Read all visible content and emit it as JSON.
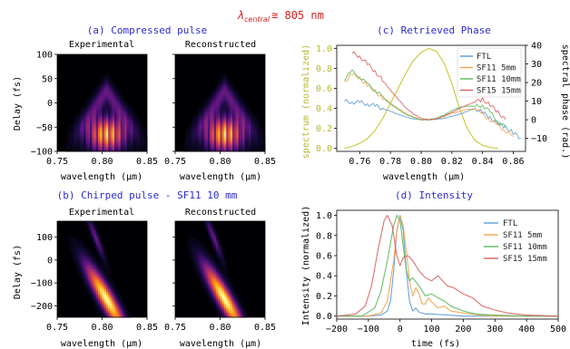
{
  "header": {
    "lambda_symbol": "λ",
    "lambda_sub": "central",
    "lambda_value": "≅ 805 nm"
  },
  "colors": {
    "title": "#2b2bd0",
    "header": "#d11f1f",
    "ftl": "#5b9bd5",
    "sf11_5": "#f5a24b",
    "sf11_10": "#5cb85c",
    "sf15_15": "#d96060",
    "spectrum": "#c8c83a"
  },
  "chart_data": [
    {
      "type": "heatmap",
      "id": "a",
      "title": "(a) Compressed pulse",
      "panels": [
        {
          "subtitle": "Experimental",
          "center_um": 0.805,
          "width_um": 0.016,
          "delay_center_fs": -65,
          "delay_spread_fs": 40,
          "tilt": 0
        },
        {
          "subtitle": "Reconstructed",
          "center_um": 0.805,
          "width_um": 0.016,
          "delay_center_fs": -65,
          "delay_spread_fs": 40,
          "tilt": 0
        }
      ],
      "xlabel": "wavelength (μm)",
      "ylabel": "Delay (fs)",
      "xlim": [
        0.75,
        0.85
      ],
      "ylim": [
        -100,
        100
      ],
      "xticks": [
        "0.75",
        "0.80",
        "0.85"
      ],
      "yticks": [
        "100",
        "50",
        "0",
        "−50",
        "−100"
      ]
    },
    {
      "type": "heatmap",
      "id": "b",
      "title": "(b) Chirped pulse - SF11 10 mm",
      "panels": [
        {
          "subtitle": "Experimental",
          "center_um": 0.805,
          "width_um": 0.018,
          "delay_center_fs": -170,
          "delay_spread_fs": 60,
          "tilt": 1
        },
        {
          "subtitle": "Reconstructed",
          "center_um": 0.805,
          "width_um": 0.018,
          "delay_center_fs": -170,
          "delay_spread_fs": 60,
          "tilt": 1
        }
      ],
      "xlabel": "wavelength (μm)",
      "ylabel": "Delay (fs)",
      "xlim": [
        0.75,
        0.85
      ],
      "ylim": [
        -250,
        170
      ],
      "xticks": [
        "0.75",
        "0.80",
        "0.85"
      ],
      "yticks": [
        "100",
        "0",
        "−100",
        "−200"
      ]
    },
    {
      "type": "line",
      "id": "c",
      "title": "(c) Retrieved Phase",
      "xlabel": "wavelength (μm)",
      "ylabel_left": "spectrum (normalized)",
      "ylabel_right": "spectral phase (rad.)",
      "xlim": [
        0.745,
        0.868
      ],
      "ylim_left": [
        -0.03,
        1.03
      ],
      "ylim_right": [
        -17,
        40
      ],
      "xticks": [
        "0.76",
        "0.78",
        "0.80",
        "0.82",
        "0.84",
        "0.86"
      ],
      "yticks_left": [
        "0.0",
        "0.2",
        "0.4",
        "0.6",
        "0.8",
        "1.0"
      ],
      "yticks_right": [
        "40",
        "30",
        "20",
        "10",
        "0",
        "−10"
      ],
      "spectrum": {
        "x": [
          0.75,
          0.755,
          0.76,
          0.765,
          0.77,
          0.775,
          0.78,
          0.785,
          0.79,
          0.795,
          0.8,
          0.805,
          0.81,
          0.815,
          0.82,
          0.825,
          0.83,
          0.835,
          0.84,
          0.845,
          0.85
        ],
        "y": [
          0.0,
          0.02,
          0.05,
          0.1,
          0.18,
          0.3,
          0.45,
          0.6,
          0.75,
          0.88,
          0.96,
          1.0,
          0.97,
          0.85,
          0.65,
          0.4,
          0.2,
          0.08,
          0.03,
          0.01,
          0.0
        ]
      },
      "series": [
        {
          "name": "FTL",
          "color": "#5b9bd5",
          "x": [
            0.75,
            0.755,
            0.76,
            0.765,
            0.77,
            0.775,
            0.78,
            0.785,
            0.79,
            0.795,
            0.8,
            0.805,
            0.81,
            0.815,
            0.82,
            0.825,
            0.83,
            0.835,
            0.84,
            0.845,
            0.85,
            0.855,
            0.86,
            0.865
          ],
          "y": [
            10,
            9.5,
            9.3,
            8.5,
            7.5,
            6,
            4.5,
            3,
            1.5,
            0.5,
            0,
            0,
            0.2,
            0.8,
            1.8,
            3,
            4.5,
            6,
            4,
            1,
            -2,
            -4,
            -7,
            -10
          ]
        },
        {
          "name": "SF11 5mm",
          "color": "#f5a24b",
          "x": [
            0.75,
            0.755,
            0.76,
            0.765,
            0.77,
            0.775,
            0.78,
            0.785,
            0.79,
            0.795,
            0.8,
            0.805,
            0.81,
            0.815,
            0.82,
            0.825,
            0.83,
            0.835,
            0.84,
            0.845,
            0.85,
            0.855,
            0.86
          ],
          "y": [
            20,
            25,
            22,
            19,
            15,
            12,
            9,
            6,
            3.5,
            1.5,
            0,
            0,
            0.6,
            1.8,
            3.5,
            4.5,
            5.5,
            6,
            3,
            0,
            -3,
            -6,
            -9
          ]
        },
        {
          "name": "SF11 10mm",
          "color": "#5cb85c",
          "x": [
            0.75,
            0.755,
            0.76,
            0.765,
            0.77,
            0.775,
            0.78,
            0.785,
            0.79,
            0.795,
            0.8,
            0.805,
            0.81,
            0.815,
            0.82,
            0.825,
            0.83,
            0.835,
            0.84,
            0.845,
            0.85,
            0.855
          ],
          "y": [
            22,
            26,
            23,
            19,
            16,
            12,
            8.5,
            5.5,
            3,
            1.2,
            0,
            0,
            1,
            2.5,
            5,
            6.5,
            7.5,
            7,
            8,
            4,
            -1,
            -4
          ]
        },
        {
          "name": "SF15 15mm",
          "color": "#d96060",
          "x": [
            0.755,
            0.76,
            0.765,
            0.77,
            0.775,
            0.78,
            0.785,
            0.79,
            0.795,
            0.8,
            0.805,
            0.81,
            0.815,
            0.82,
            0.825,
            0.83,
            0.835,
            0.84,
            0.845,
            0.85,
            0.855
          ],
          "y": [
            36,
            34,
            30,
            26,
            21,
            16,
            11,
            6.5,
            3,
            0.8,
            0,
            0.5,
            2,
            4,
            6,
            8,
            9.5,
            11,
            8,
            4,
            0
          ]
        }
      ],
      "legend": "top-right"
    },
    {
      "type": "line",
      "id": "d",
      "title": "(d) Intensity",
      "xlabel": "time (fs)",
      "ylabel": "Intensity (normalized)",
      "xlim": [
        -200,
        500
      ],
      "ylim": [
        -0.03,
        1.05
      ],
      "xticks": [
        "−200",
        "−100",
        "0",
        "100",
        "200",
        "300",
        "400",
        "500"
      ],
      "yticks": [
        "0.0",
        "0.2",
        "0.4",
        "0.6",
        "0.8",
        "1.0"
      ],
      "series": [
        {
          "name": "FTL",
          "color": "#5b9bd5",
          "x": [
            -200,
            -100,
            -60,
            -40,
            -30,
            -20,
            -10,
            0,
            10,
            20,
            30,
            40,
            50,
            60,
            80,
            100,
            150,
            200,
            300,
            400,
            500
          ],
          "y": [
            0,
            0,
            0.01,
            0.05,
            0.15,
            0.45,
            0.85,
            1.0,
            0.85,
            0.45,
            0.15,
            0.05,
            0.08,
            0.04,
            0.02,
            0.02,
            0.01,
            0,
            0,
            0,
            0
          ]
        },
        {
          "name": "SF11 5mm",
          "color": "#f5a24b",
          "x": [
            -200,
            -100,
            -60,
            -40,
            -20,
            -10,
            0,
            10,
            20,
            30,
            40,
            50,
            60,
            70,
            80,
            90,
            100,
            120,
            140,
            160,
            180,
            200,
            250,
            300,
            400,
            500
          ],
          "y": [
            0,
            0,
            0.03,
            0.15,
            0.55,
            0.85,
            1.0,
            0.9,
            0.65,
            0.35,
            0.2,
            0.28,
            0.22,
            0.12,
            0.12,
            0.18,
            0.14,
            0.08,
            0.1,
            0.05,
            0.04,
            0.03,
            0.01,
            0,
            0,
            0
          ]
        },
        {
          "name": "SF11 10mm",
          "color": "#5cb85c",
          "x": [
            -200,
            -120,
            -80,
            -60,
            -40,
            -20,
            -10,
            0,
            10,
            20,
            30,
            40,
            60,
            80,
            100,
            120,
            140,
            160,
            200,
            240,
            300,
            400,
            500
          ],
          "y": [
            0,
            0,
            0.08,
            0.25,
            0.55,
            0.9,
            1.0,
            0.95,
            0.7,
            0.45,
            0.35,
            0.38,
            0.3,
            0.2,
            0.22,
            0.18,
            0.15,
            0.1,
            0.05,
            0.02,
            0.01,
            0,
            0
          ]
        },
        {
          "name": "SF15 15mm",
          "color": "#d96060",
          "x": [
            -200,
            -140,
            -110,
            -90,
            -70,
            -50,
            -40,
            -25,
            -10,
            0,
            10,
            25,
            40,
            60,
            80,
            100,
            120,
            150,
            170,
            200,
            230,
            260,
            300,
            340,
            400,
            500
          ],
          "y": [
            0,
            0.02,
            0.1,
            0.3,
            0.65,
            0.95,
            1.0,
            0.9,
            0.6,
            0.5,
            0.58,
            0.6,
            0.55,
            0.45,
            0.38,
            0.35,
            0.4,
            0.3,
            0.28,
            0.22,
            0.18,
            0.1,
            0.06,
            0.03,
            0.01,
            0
          ]
        }
      ],
      "legend": "top-right"
    }
  ]
}
